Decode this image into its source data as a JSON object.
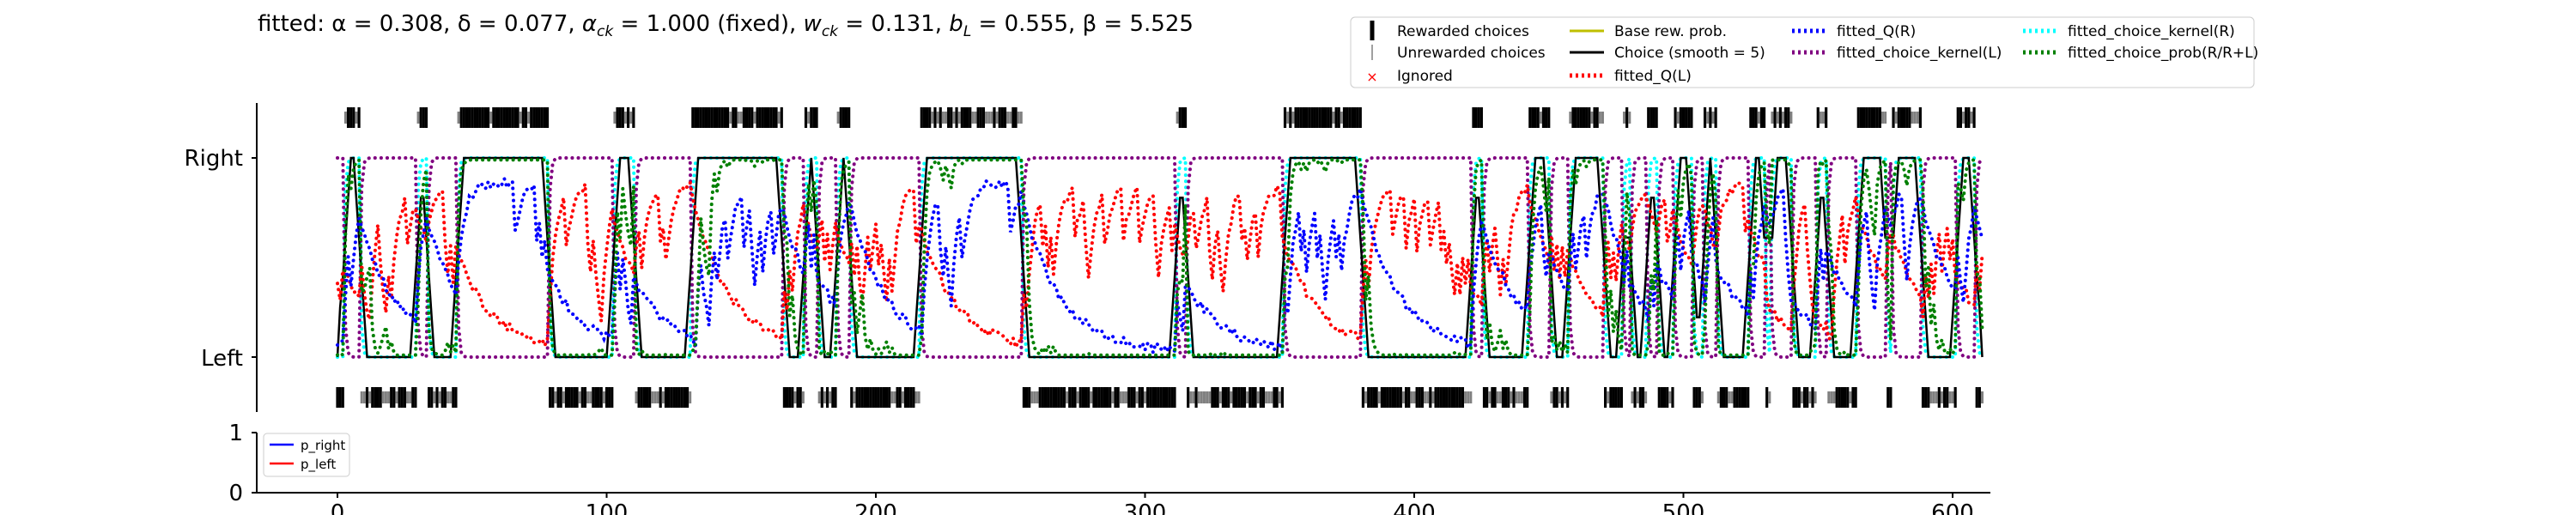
{
  "title": "fitted: α = 0.308, δ = 0.077, α_ck = 1.000 (fixed), w_ck = 0.131, b_L = 0.555, β = 5.525",
  "title_parts": {
    "prefix": "fitted: ",
    "alpha": "α = 0.308, ",
    "delta": "δ = 0.077, ",
    "alpha_ck_sym": "α",
    "alpha_ck_sub": "ck",
    "alpha_ck_val": " = 1.000 (fixed), ",
    "w_ck_sym": "w",
    "w_ck_sub": "ck",
    "w_ck_val": " = 0.131, ",
    "b_L_sym": "b",
    "b_L_sub": "L",
    "b_L_val": " = 0.555, ",
    "beta": "β = 5.525"
  },
  "legend_main": [
    {
      "label": "Rewarded choices",
      "color": "#000000",
      "style": "tick-bold"
    },
    {
      "label": "Unrewarded choices",
      "color": "#808080",
      "style": "tick-thin"
    },
    {
      "label": "Ignored",
      "color": "#ff0000",
      "style": "x"
    },
    {
      "label": "Base rew. prob.",
      "color": "#bfbf00",
      "style": "solid"
    },
    {
      "label": "Choice (smooth = 5)",
      "color": "#000000",
      "style": "solid"
    },
    {
      "label": "fitted_Q(L)",
      "color": "#ff0000",
      "style": "dotted"
    },
    {
      "label": "fitted_Q(R)",
      "color": "#0000ff",
      "style": "dotted"
    },
    {
      "label": "fitted_choice_kernel(L)",
      "color": "#800080",
      "style": "dotted"
    },
    {
      "label": "fitted_choice_kernel(R)",
      "color": "#00ffff",
      "style": "dotted"
    },
    {
      "label": "fitted_choice_prob(R/R+L)",
      "color": "#008000",
      "style": "dotted"
    }
  ],
  "legend_small": [
    {
      "label": "p_right",
      "color": "#0000ff"
    },
    {
      "label": "p_left",
      "color": "#ff0000"
    }
  ],
  "chart_data": {
    "type": "line",
    "x_ticks": [
      0,
      100,
      200,
      300,
      400,
      500,
      600
    ],
    "xlim": [
      -3,
      612
    ],
    "y_ticks_main": [
      "Left",
      "Right"
    ],
    "y_ticks_small": [
      "0",
      "1"
    ],
    "ylim_small": [
      0,
      1
    ],
    "n_trials": 612,
    "right_blocks": [
      [
        3,
        8
      ],
      [
        30,
        33
      ],
      [
        45,
        78
      ],
      [
        103,
        110
      ],
      [
        132,
        165
      ],
      [
        174,
        178
      ],
      [
        186,
        190
      ],
      [
        217,
        254
      ],
      [
        312,
        315
      ],
      [
        352,
        380
      ],
      [
        422,
        425
      ],
      [
        443,
        450
      ],
      [
        458,
        470
      ],
      [
        478,
        480
      ],
      [
        487,
        490
      ],
      [
        497,
        503
      ],
      [
        508,
        512
      ],
      [
        525,
        530
      ],
      [
        533,
        540
      ],
      [
        550,
        553
      ],
      [
        565,
        575
      ],
      [
        578,
        588
      ],
      [
        602,
        608
      ]
    ]
  }
}
